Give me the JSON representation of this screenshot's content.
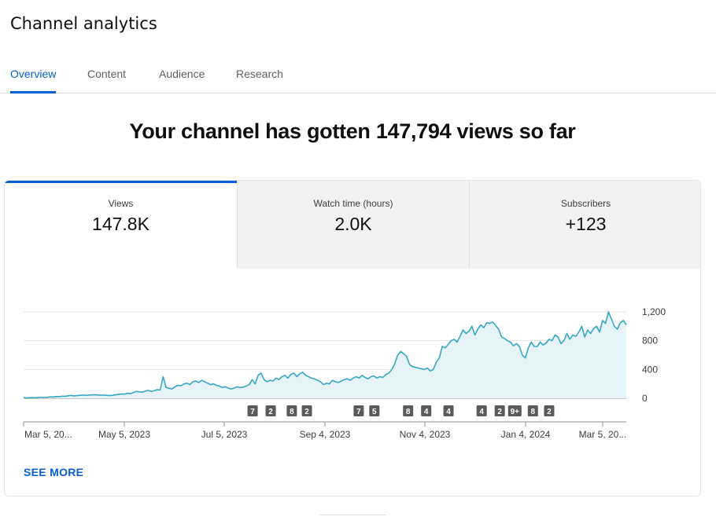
{
  "page": {
    "title": "Channel analytics"
  },
  "tabs": [
    {
      "label": "Overview",
      "active": true
    },
    {
      "label": "Content",
      "active": false
    },
    {
      "label": "Audience",
      "active": false
    },
    {
      "label": "Research",
      "active": false
    }
  ],
  "headline": "Your channel has gotten 147,794 views so far",
  "metrics": [
    {
      "label": "Views",
      "value": "147.8K",
      "active": true
    },
    {
      "label": "Watch time (hours)",
      "value": "2.0K",
      "active": false
    },
    {
      "label": "Subscribers",
      "value": "+123",
      "active": false
    }
  ],
  "see_more": "SEE MORE",
  "colors": {
    "accent": "#065fd4",
    "series_line": "#36a8c4",
    "series_fill": "#e6f4f8",
    "marker_bg": "#5a5a5a"
  },
  "chart_data": {
    "type": "area",
    "x_labels": [
      "Mar 5, 20...",
      "May 5, 2023",
      "Jul 5, 2023",
      "Sep 4, 2023",
      "Nov 4, 2023",
      "Jan 4, 2024",
      "Mar 5, 20..."
    ],
    "y_ticks": [
      "1,200",
      "800",
      "400",
      "0"
    ],
    "y_tick_values": [
      1200,
      800,
      400,
      0
    ],
    "ylim": [
      0,
      1200
    ],
    "grid": true,
    "series": [
      {
        "values": [
          8,
          6,
          9,
          10,
          8,
          12,
          15,
          11,
          14,
          20,
          18,
          25,
          22,
          30,
          28,
          35,
          40,
          33,
          38,
          42,
          45,
          40,
          44,
          48,
          50,
          46,
          43,
          45,
          40,
          38,
          42,
          48,
          55,
          60,
          58,
          70,
          65,
          80,
          95,
          90,
          85,
          100,
          110,
          95,
          105,
          120,
          115,
          300,
          150,
          140,
          130,
          160,
          180,
          175,
          200,
          210,
          190,
          230,
          240,
          220,
          250,
          230,
          210,
          190,
          200,
          180,
          170,
          150,
          160,
          140,
          130,
          145,
          160,
          150,
          155,
          170,
          190,
          260,
          200,
          320,
          350,
          260,
          230,
          250,
          240,
          280,
          260,
          300,
          320,
          280,
          330,
          350,
          300,
          340,
          360,
          320,
          300,
          280,
          270,
          250,
          230,
          190,
          210,
          200,
          250,
          230,
          220,
          240,
          260,
          270,
          250,
          280,
          300,
          280,
          320,
          290,
          270,
          300,
          310,
          280,
          300,
          290,
          330,
          350,
          400,
          480,
          600,
          650,
          620,
          580,
          470,
          440,
          430,
          420,
          410,
          400,
          420,
          380,
          400,
          500,
          560,
          720,
          700,
          750,
          800,
          820,
          780,
          860,
          950,
          900,
          930,
          1000,
          880,
          960,
          1020,
          980,
          1050,
          1040,
          1060,
          1010,
          960,
          850,
          830,
          800,
          780,
          730,
          760,
          720,
          600,
          560,
          700,
          780,
          720,
          720,
          780,
          740,
          770,
          820,
          800,
          880,
          850,
          760,
          800,
          900,
          820,
          880,
          860,
          920,
          1000,
          850,
          950,
          900,
          970,
          1000,
          920,
          1080,
          1040,
          1200,
          1100,
          1000,
          960,
          1050,
          1080,
          1020
        ]
      }
    ],
    "annotation_markers": [
      "7",
      "2",
      "8",
      "2",
      "7",
      "5",
      "8",
      "4",
      "4",
      "4",
      "2",
      "9+",
      "8",
      "2"
    ],
    "annotation_marker_positions": [
      0.38,
      0.41,
      0.445,
      0.47,
      0.556,
      0.582,
      0.638,
      0.668,
      0.705,
      0.76,
      0.79,
      0.815,
      0.845,
      0.872
    ]
  }
}
